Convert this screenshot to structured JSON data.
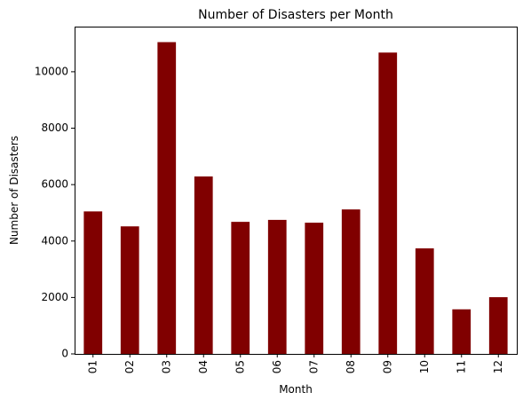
{
  "chart_data": {
    "type": "bar",
    "title": "Number of Disasters per Month",
    "xlabel": "Month",
    "ylabel": "Number of Disasters",
    "categories": [
      "01",
      "02",
      "03",
      "04",
      "05",
      "06",
      "07",
      "08",
      "09",
      "10",
      "11",
      "12"
    ],
    "values": [
      5050,
      4520,
      11050,
      6290,
      4680,
      4750,
      4650,
      5120,
      10680,
      3740,
      1580,
      2010
    ],
    "ylim": [
      0,
      11600
    ],
    "yticks": [
      0,
      2000,
      4000,
      6000,
      8000,
      10000
    ],
    "bar_color": "#800000",
    "grid": false,
    "legend": "none"
  }
}
